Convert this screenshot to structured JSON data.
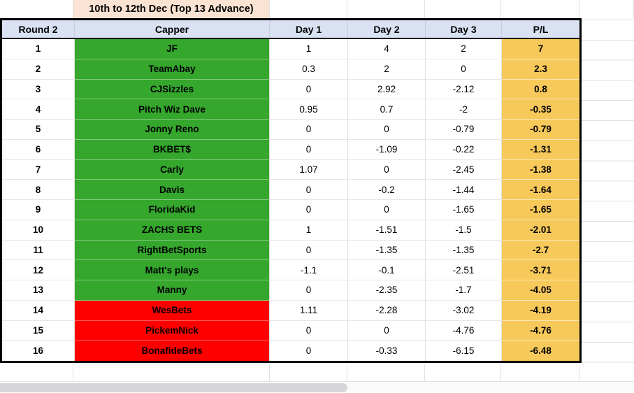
{
  "sheet": {
    "title": "10th to 12th Dec (Top 13 Advance)",
    "columns": [
      "Round 2",
      "Capper",
      "Day 1",
      "Day 2",
      "Day 3",
      "P/L"
    ],
    "colors": {
      "title_bg": "#FBE3D3",
      "header_bg": "#D9E1F2",
      "advance_green": "#34A72C",
      "eliminated_red": "#FF0000",
      "pl_gold": "#F7C95A",
      "table_border": "#000000",
      "gridline": "#E0E0E0"
    },
    "rows": [
      {
        "rank": "1",
        "capper": "JF",
        "day1": "1",
        "day2": "4",
        "day3": "2",
        "pl": "7",
        "status": "advance"
      },
      {
        "rank": "2",
        "capper": "TeamAbay",
        "day1": "0.3",
        "day2": "2",
        "day3": "0",
        "pl": "2.3",
        "status": "advance"
      },
      {
        "rank": "3",
        "capper": "CJSizzles",
        "day1": "0",
        "day2": "2.92",
        "day3": "-2.12",
        "pl": "0.8",
        "status": "advance"
      },
      {
        "rank": "4",
        "capper": "Pitch Wiz Dave",
        "day1": "0.95",
        "day2": "0.7",
        "day3": "-2",
        "pl": "-0.35",
        "status": "advance"
      },
      {
        "rank": "5",
        "capper": "Jonny Reno",
        "day1": "0",
        "day2": "0",
        "day3": "-0.79",
        "pl": "-0.79",
        "status": "advance"
      },
      {
        "rank": "6",
        "capper": "BKBET$",
        "day1": "0",
        "day2": "-1.09",
        "day3": "-0.22",
        "pl": "-1.31",
        "status": "advance"
      },
      {
        "rank": "7",
        "capper": "Carly",
        "day1": "1.07",
        "day2": "0",
        "day3": "-2.45",
        "pl": "-1.38",
        "status": "advance"
      },
      {
        "rank": "8",
        "capper": "Davis",
        "day1": "0",
        "day2": "-0.2",
        "day3": "-1.44",
        "pl": "-1.64",
        "status": "advance"
      },
      {
        "rank": "9",
        "capper": "FloridaKid",
        "day1": "0",
        "day2": "0",
        "day3": "-1.65",
        "pl": "-1.65",
        "status": "advance"
      },
      {
        "rank": "10",
        "capper": "ZACHS BETS",
        "day1": "1",
        "day2": "-1.51",
        "day3": "-1.5",
        "pl": "-2.01",
        "status": "advance"
      },
      {
        "rank": "11",
        "capper": "RightBetSports",
        "day1": "0",
        "day2": "-1.35",
        "day3": "-1.35",
        "pl": "-2.7",
        "status": "advance"
      },
      {
        "rank": "12",
        "capper": "Matt's plays",
        "day1": "-1.1",
        "day2": "-0.1",
        "day3": "-2.51",
        "pl": "-3.71",
        "status": "advance"
      },
      {
        "rank": "13",
        "capper": "Manny",
        "day1": "0",
        "day2": "-2.35",
        "day3": "-1.7",
        "pl": "-4.05",
        "status": "advance"
      },
      {
        "rank": "14",
        "capper": "WesBets",
        "day1": "1.11",
        "day2": "-2.28",
        "day3": "-3.02",
        "pl": "-4.19",
        "status": "eliminated"
      },
      {
        "rank": "15",
        "capper": "PickemNick",
        "day1": "0",
        "day2": "0",
        "day3": "-4.76",
        "pl": "-4.76",
        "status": "eliminated"
      },
      {
        "rank": "16",
        "capper": "BonafideBets",
        "day1": "0",
        "day2": "-0.33",
        "day3": "-6.15",
        "pl": "-6.48",
        "status": "eliminated"
      }
    ],
    "scrollbar": {
      "orientation": "horizontal"
    }
  }
}
